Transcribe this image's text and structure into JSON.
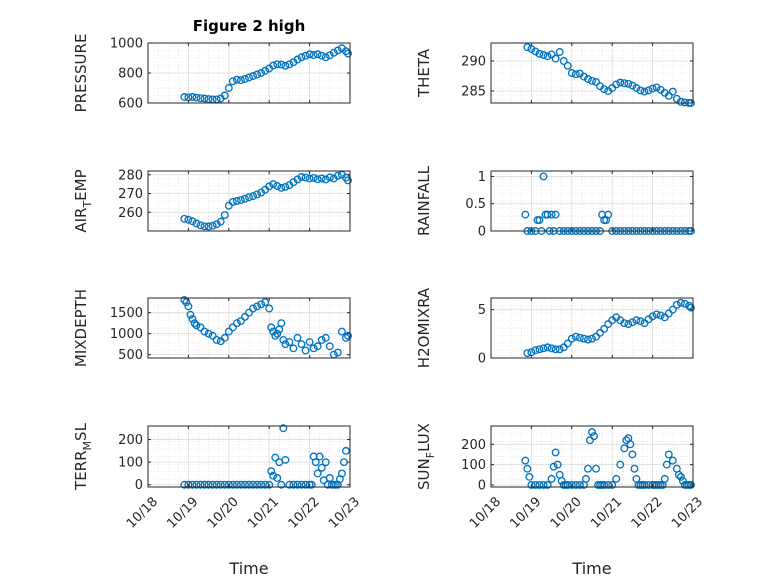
{
  "chart_data": [
    {
      "type": "scatter",
      "title": "Figure 2 high",
      "ylabel": "PRESSURE",
      "ylabel_sub": "",
      "xlim": [
        "10/18",
        "10/23"
      ],
      "ylim": [
        600,
        1000
      ],
      "yticks": [
        600,
        800,
        1000
      ],
      "yticklabels": [
        "600",
        "800",
        "1000"
      ],
      "xticks": [],
      "xticklabels": [],
      "xlabel": "",
      "series": [
        {
          "x": [
            0.9,
            1.0,
            1.1,
            1.2,
            1.3,
            1.4,
            1.5,
            1.6,
            1.7,
            1.8,
            1.9,
            2.0,
            2.1,
            2.2,
            2.3,
            2.4,
            2.5,
            2.6,
            2.7,
            2.8,
            2.9,
            3.0,
            3.1,
            3.2,
            3.3,
            3.4,
            3.5,
            3.6,
            3.7,
            3.8,
            3.9,
            4.0,
            4.1,
            4.2,
            4.3,
            4.4,
            4.5,
            4.6,
            4.7,
            4.8,
            4.9,
            4.95
          ],
          "y": [
            640,
            638,
            640,
            636,
            632,
            630,
            626,
            624,
            624,
            630,
            650,
            700,
            745,
            755,
            752,
            760,
            770,
            780,
            790,
            800,
            815,
            830,
            850,
            858,
            856,
            848,
            858,
            872,
            890,
            905,
            915,
            925,
            920,
            925,
            915,
            905,
            918,
            935,
            950,
            965,
            945,
            930
          ]
        }
      ]
    },
    {
      "type": "scatter",
      "title": "",
      "ylabel": "THETA",
      "ylabel_sub": "",
      "xlim": [
        "10/18",
        "10/23"
      ],
      "ylim": [
        283,
        293
      ],
      "yticks": [
        285,
        290
      ],
      "yticklabels": [
        "285",
        "290"
      ],
      "xticks": [],
      "xticklabels": [],
      "xlabel": "",
      "series": [
        {
          "x": [
            0.9,
            1.0,
            1.1,
            1.2,
            1.3,
            1.4,
            1.5,
            1.6,
            1.7,
            1.8,
            1.9,
            2.0,
            2.1,
            2.2,
            2.3,
            2.4,
            2.5,
            2.6,
            2.7,
            2.8,
            2.9,
            3.0,
            3.1,
            3.2,
            3.3,
            3.4,
            3.5,
            3.6,
            3.7,
            3.8,
            3.9,
            4.0,
            4.1,
            4.2,
            4.3,
            4.4,
            4.5,
            4.6,
            4.7,
            4.8,
            4.9,
            4.95
          ],
          "y": [
            292.3,
            292.0,
            291.6,
            291.2,
            291.0,
            290.8,
            291.1,
            290.4,
            291.5,
            290.0,
            289.2,
            288.0,
            287.8,
            287.9,
            287.4,
            287.0,
            286.7,
            286.5,
            285.8,
            285.3,
            285.0,
            285.5,
            286.1,
            286.4,
            286.3,
            286.2,
            285.9,
            285.5,
            285.1,
            284.9,
            285.1,
            285.4,
            285.6,
            285.2,
            284.7,
            284.2,
            284.9,
            283.7,
            283.2,
            283.1,
            283.0,
            283.0
          ]
        }
      ]
    },
    {
      "type": "scatter",
      "title": "",
      "ylabel": "AIR",
      "ylabel_sub": "T",
      "ylabel_suffix": "EMP",
      "xlim": [
        "10/18",
        "10/23"
      ],
      "ylim": [
        250,
        282
      ],
      "yticks": [
        260,
        270,
        280
      ],
      "yticklabels": [
        "260",
        "270",
        "280"
      ],
      "xticks": [],
      "xticklabels": [],
      "xlabel": "",
      "series": [
        {
          "x": [
            0.9,
            1.0,
            1.1,
            1.2,
            1.3,
            1.4,
            1.5,
            1.6,
            1.7,
            1.8,
            1.9,
            2.0,
            2.1,
            2.2,
            2.3,
            2.4,
            2.5,
            2.6,
            2.7,
            2.8,
            2.9,
            3.0,
            3.1,
            3.2,
            3.3,
            3.4,
            3.5,
            3.6,
            3.7,
            3.8,
            3.9,
            4.0,
            4.1,
            4.2,
            4.3,
            4.4,
            4.5,
            4.6,
            4.7,
            4.8,
            4.9,
            4.95
          ],
          "y": [
            256.5,
            256.0,
            255.2,
            254.0,
            253.0,
            252.5,
            252.4,
            252.8,
            253.6,
            255.0,
            258.5,
            263.5,
            265.5,
            266.0,
            266.5,
            267.2,
            268.0,
            268.6,
            269.5,
            270.5,
            272.0,
            273.8,
            275.0,
            274.0,
            273.0,
            273.5,
            274.5,
            276.0,
            277.5,
            278.8,
            278.5,
            278.0,
            278.3,
            277.6,
            278.0,
            277.5,
            278.6,
            278.0,
            279.5,
            280.0,
            278.5,
            277.0
          ]
        }
      ]
    },
    {
      "type": "scatter",
      "title": "",
      "ylabel": "RAINFALL",
      "ylabel_sub": "",
      "xlim": [
        "10/18",
        "10/23"
      ],
      "ylim": [
        0,
        1.1
      ],
      "yticks": [
        0,
        0.5,
        1
      ],
      "yticklabels": [
        "0",
        "0.5",
        "1"
      ],
      "xticks": [],
      "xticklabels": [],
      "xlabel": "",
      "series": [
        {
          "x": [
            0.85,
            0.9,
            1.0,
            1.1,
            1.15,
            1.2,
            1.25,
            1.3,
            1.35,
            1.4,
            1.45,
            1.5,
            1.55,
            1.6,
            1.7,
            1.8,
            1.9,
            2.0,
            2.1,
            2.2,
            2.3,
            2.4,
            2.5,
            2.6,
            2.7,
            2.75,
            2.8,
            2.85,
            2.9,
            3.0,
            3.1,
            3.2,
            3.3,
            3.4,
            3.5,
            3.6,
            3.7,
            3.8,
            3.9,
            4.0,
            4.1,
            4.2,
            4.3,
            4.4,
            4.5,
            4.6,
            4.7,
            4.8,
            4.9,
            4.95
          ],
          "y": [
            0.3,
            0,
            0,
            0,
            0.2,
            0.2,
            0,
            1.0,
            0.3,
            0.3,
            0,
            0.3,
            0,
            0.3,
            0,
            0,
            0,
            0,
            0,
            0,
            0,
            0,
            0,
            0,
            0,
            0.3,
            0.2,
            0.2,
            0.3,
            0,
            0,
            0,
            0,
            0,
            0,
            0,
            0,
            0,
            0,
            0,
            0,
            0,
            0,
            0,
            0,
            0,
            0,
            0,
            0,
            0
          ]
        }
      ]
    },
    {
      "type": "scatter",
      "title": "",
      "ylabel": "MIXDEPTH",
      "ylabel_sub": "",
      "xlim": [
        "10/18",
        "10/23"
      ],
      "ylim": [
        420,
        1850
      ],
      "yticks": [
        500,
        1000,
        1500
      ],
      "yticklabels": [
        "500",
        "1000",
        "1500"
      ],
      "xticks": [],
      "xticklabels": [],
      "xlabel": "",
      "series": [
        {
          "x": [
            0.9,
            0.95,
            1.0,
            1.05,
            1.1,
            1.15,
            1.2,
            1.3,
            1.4,
            1.5,
            1.6,
            1.7,
            1.8,
            1.9,
            2.0,
            2.1,
            2.2,
            2.3,
            2.4,
            2.5,
            2.6,
            2.7,
            2.8,
            2.9,
            3.0,
            3.05,
            3.1,
            3.15,
            3.2,
            3.25,
            3.3,
            3.35,
            3.4,
            3.5,
            3.6,
            3.7,
            3.8,
            3.9,
            4.0,
            4.1,
            4.2,
            4.3,
            4.4,
            4.5,
            4.6,
            4.7,
            4.8,
            4.9,
            4.95
          ],
          "y": [
            1800,
            1750,
            1650,
            1450,
            1350,
            1250,
            1200,
            1150,
            1050,
            1000,
            950,
            850,
            820,
            900,
            1050,
            1150,
            1250,
            1300,
            1400,
            1500,
            1600,
            1650,
            1700,
            1750,
            1600,
            1150,
            1050,
            950,
            1000,
            1100,
            1250,
            850,
            750,
            800,
            650,
            900,
            750,
            600,
            800,
            650,
            700,
            850,
            900,
            700,
            500,
            550,
            1050,
            900,
            950
          ]
        }
      ]
    },
    {
      "type": "scatter",
      "title": "",
      "ylabel": "H2OMIXRA",
      "ylabel_sub": "",
      "xlim": [
        "10/18",
        "10/23"
      ],
      "ylim": [
        0,
        6.2
      ],
      "yticks": [
        0,
        5
      ],
      "yticklabels": [
        "0",
        "5"
      ],
      "xticks": [],
      "xticklabels": [],
      "xlabel": "",
      "series": [
        {
          "x": [
            0.9,
            1.0,
            1.1,
            1.2,
            1.3,
            1.4,
            1.5,
            1.6,
            1.7,
            1.8,
            1.9,
            2.0,
            2.1,
            2.2,
            2.3,
            2.4,
            2.5,
            2.6,
            2.7,
            2.8,
            2.9,
            3.0,
            3.1,
            3.2,
            3.3,
            3.4,
            3.5,
            3.6,
            3.7,
            3.8,
            3.9,
            4.0,
            4.1,
            4.2,
            4.3,
            4.4,
            4.5,
            4.6,
            4.7,
            4.8,
            4.9,
            4.95
          ],
          "y": [
            0.5,
            0.6,
            0.8,
            0.9,
            1.0,
            1.1,
            1.0,
            0.9,
            0.9,
            1.1,
            1.5,
            2.0,
            2.2,
            2.1,
            2.0,
            1.9,
            2.0,
            2.2,
            2.6,
            3.0,
            3.5,
            3.9,
            4.2,
            3.9,
            3.6,
            3.5,
            3.7,
            3.9,
            3.8,
            3.6,
            4.0,
            4.3,
            4.5,
            4.4,
            4.2,
            4.6,
            5.0,
            5.5,
            5.7,
            5.6,
            5.4,
            5.2
          ]
        }
      ]
    },
    {
      "type": "scatter",
      "title": "",
      "ylabel": "TERR",
      "ylabel_sub": "M",
      "ylabel_suffix": "SL",
      "xlim": [
        "10/18",
        "10/23"
      ],
      "ylim": [
        -10,
        260
      ],
      "yticks": [
        0,
        100,
        200
      ],
      "yticklabels": [
        "0",
        "100",
        "200"
      ],
      "xticks": [
        0,
        1,
        2,
        3,
        4,
        5
      ],
      "xticklabels": [
        "10/18",
        "10/19",
        "10/20",
        "10/21",
        "10/22",
        "10/23"
      ],
      "xlabel": "Time",
      "series": [
        {
          "x": [
            0.9,
            1.0,
            1.1,
            1.2,
            1.3,
            1.4,
            1.5,
            1.6,
            1.7,
            1.8,
            1.9,
            2.0,
            2.1,
            2.2,
            2.3,
            2.4,
            2.5,
            2.6,
            2.7,
            2.8,
            2.9,
            3.0,
            3.05,
            3.1,
            3.15,
            3.2,
            3.25,
            3.3,
            3.35,
            3.4,
            3.5,
            3.6,
            3.7,
            3.8,
            3.9,
            4.0,
            4.05,
            4.1,
            4.15,
            4.2,
            4.25,
            4.3,
            4.35,
            4.4,
            4.45,
            4.5,
            4.55,
            4.6,
            4.65,
            4.7,
            4.75,
            4.8,
            4.85,
            4.9
          ],
          "y": [
            0,
            0,
            0,
            0,
            0,
            0,
            0,
            0,
            0,
            0,
            0,
            0,
            0,
            0,
            0,
            0,
            0,
            0,
            0,
            0,
            0,
            0,
            60,
            40,
            120,
            30,
            100,
            0,
            250,
            110,
            0,
            0,
            0,
            0,
            0,
            0,
            0,
            125,
            100,
            50,
            125,
            75,
            20,
            100,
            0,
            30,
            0,
            0,
            0,
            0,
            25,
            50,
            100,
            150
          ]
        }
      ]
    },
    {
      "type": "scatter",
      "title": "",
      "ylabel": "SUN",
      "ylabel_sub": "F",
      "ylabel_suffix": "LUX",
      "xlim": [
        "10/18",
        "10/23"
      ],
      "ylim": [
        -10,
        290
      ],
      "yticks": [
        0,
        100,
        200
      ],
      "yticklabels": [
        "0",
        "100",
        "200"
      ],
      "xticks": [
        0,
        1,
        2,
        3,
        4,
        5
      ],
      "xticklabels": [
        "10/18",
        "10/19",
        "10/20",
        "10/21",
        "10/22",
        "10/23"
      ],
      "xlabel": "Time",
      "series": [
        {
          "x": [
            0.85,
            0.9,
            0.95,
            1.0,
            1.1,
            1.2,
            1.3,
            1.4,
            1.5,
            1.55,
            1.6,
            1.65,
            1.7,
            1.75,
            1.8,
            1.85,
            1.9,
            2.0,
            2.1,
            2.2,
            2.3,
            2.35,
            2.4,
            2.45,
            2.5,
            2.55,
            2.6,
            2.65,
            2.7,
            2.75,
            2.8,
            2.9,
            3.0,
            3.1,
            3.2,
            3.3,
            3.35,
            3.4,
            3.45,
            3.5,
            3.55,
            3.6,
            3.65,
            3.7,
            3.75,
            3.8,
            3.9,
            4.0,
            4.05,
            4.1,
            4.15,
            4.2,
            4.25,
            4.3,
            4.35,
            4.4,
            4.5,
            4.6,
            4.65,
            4.7,
            4.75,
            4.8,
            4.85,
            4.9,
            4.95
          ],
          "y": [
            120,
            80,
            40,
            0,
            0,
            0,
            0,
            0,
            30,
            90,
            160,
            100,
            50,
            20,
            0,
            0,
            0,
            0,
            0,
            0,
            0,
            30,
            80,
            220,
            260,
            240,
            80,
            0,
            0,
            0,
            0,
            0,
            0,
            30,
            100,
            180,
            220,
            230,
            200,
            150,
            80,
            30,
            0,
            0,
            0,
            0,
            0,
            0,
            0,
            0,
            0,
            0,
            0,
            30,
            100,
            150,
            120,
            80,
            50,
            40,
            20,
            0,
            0,
            0,
            0
          ]
        }
      ]
    }
  ]
}
